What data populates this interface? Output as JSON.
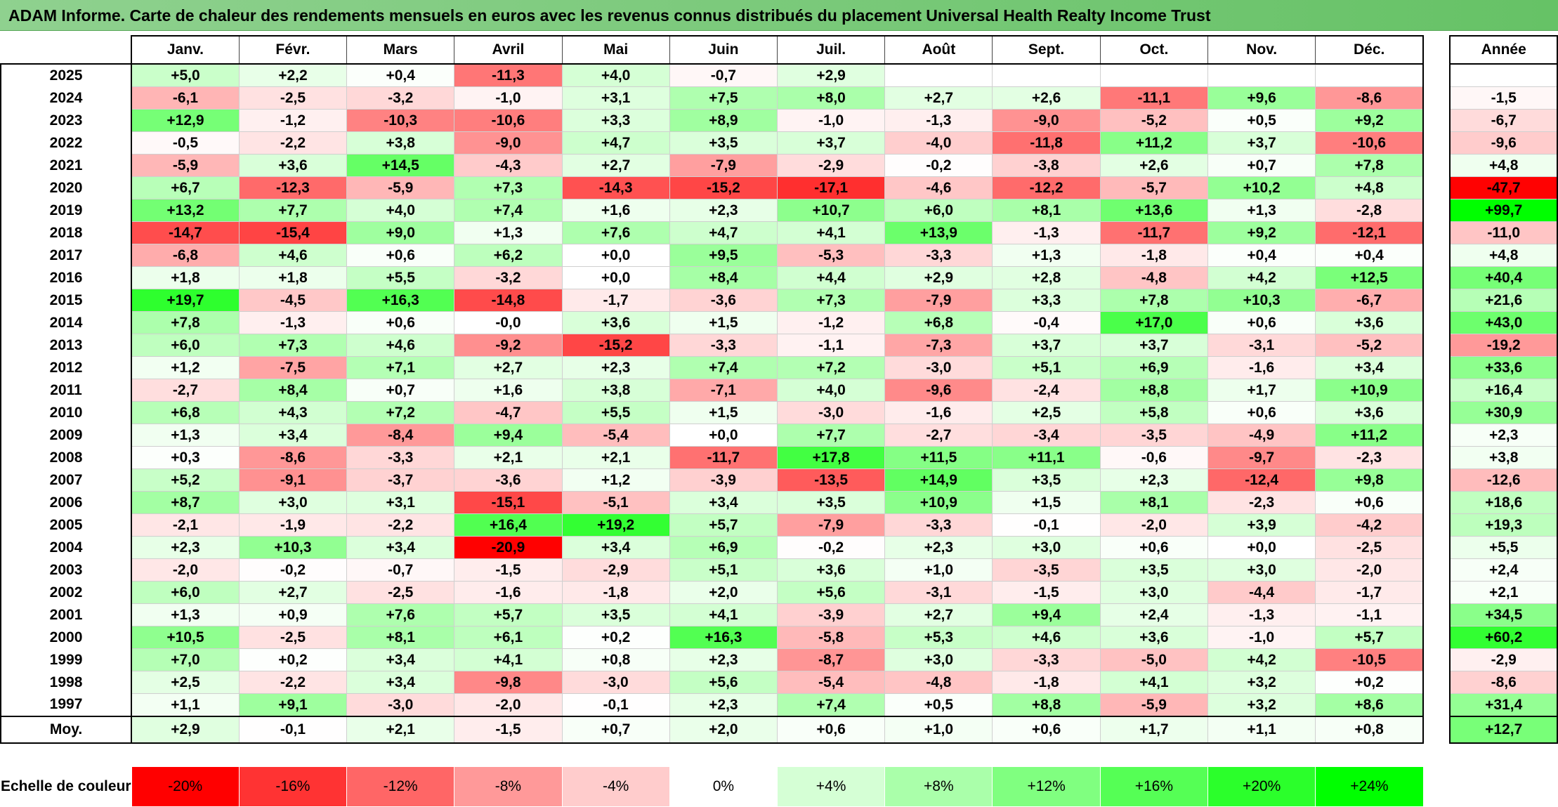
{
  "title": "ADAM Informe. Carte de chaleur des rendements mensuels en euros avec les revenus connus distribués du placement Universal Health Realty Income Trust",
  "chart_data": {
    "type": "heatmap",
    "title": "ADAM Informe. Carte de chaleur des rendements mensuels en euros avec les revenus connus distribués du placement Universal Health Realty Income Trust",
    "months": [
      "Janv.",
      "Févr.",
      "Mars",
      "Avril",
      "Mai",
      "Juin",
      "Juil.",
      "Août",
      "Sept.",
      "Oct.",
      "Nov.",
      "Déc."
    ],
    "year_header": "Année",
    "rows": [
      {
        "year": "2025",
        "values": [
          "+5,0",
          "+2,2",
          "+0,4",
          "-11,3",
          "+4,0",
          "-0,7",
          "+2,9",
          "",
          "",
          "",
          "",
          ""
        ],
        "annual": ""
      },
      {
        "year": "2024",
        "values": [
          "-6,1",
          "-2,5",
          "-3,2",
          "-1,0",
          "+3,1",
          "+7,5",
          "+8,0",
          "+2,7",
          "+2,6",
          "-11,1",
          "+9,6",
          "-8,6"
        ],
        "annual": "-1,5"
      },
      {
        "year": "2023",
        "values": [
          "+12,9",
          "-1,2",
          "-10,3",
          "-10,6",
          "+3,3",
          "+8,9",
          "-1,0",
          "-1,3",
          "-9,0",
          "-5,2",
          "+0,5",
          "+9,2"
        ],
        "annual": "-6,7"
      },
      {
        "year": "2022",
        "values": [
          "-0,5",
          "-2,2",
          "+3,8",
          "-9,0",
          "+4,7",
          "+3,5",
          "+3,7",
          "-4,0",
          "-11,8",
          "+11,2",
          "+3,7",
          "-10,6"
        ],
        "annual": "-9,6"
      },
      {
        "year": "2021",
        "values": [
          "-5,9",
          "+3,6",
          "+14,5",
          "-4,3",
          "+2,7",
          "-7,9",
          "-2,9",
          "-0,2",
          "-3,8",
          "+2,6",
          "+0,7",
          "+7,8"
        ],
        "annual": "+4,8"
      },
      {
        "year": "2020",
        "values": [
          "+6,7",
          "-12,3",
          "-5,9",
          "+7,3",
          "-14,3",
          "-15,2",
          "-17,1",
          "-4,6",
          "-12,2",
          "-5,7",
          "+10,2",
          "+4,8"
        ],
        "annual": "-47,7"
      },
      {
        "year": "2019",
        "values": [
          "+13,2",
          "+7,7",
          "+4,0",
          "+7,4",
          "+1,6",
          "+2,3",
          "+10,7",
          "+6,0",
          "+8,1",
          "+13,6",
          "+1,3",
          "-2,8"
        ],
        "annual": "+99,7"
      },
      {
        "year": "2018",
        "values": [
          "-14,7",
          "-15,4",
          "+9,0",
          "+1,3",
          "+7,6",
          "+4,7",
          "+4,1",
          "+13,9",
          "-1,3",
          "-11,7",
          "+9,2",
          "-12,1"
        ],
        "annual": "-11,0"
      },
      {
        "year": "2017",
        "values": [
          "-6,8",
          "+4,6",
          "+0,6",
          "+6,2",
          "+0,0",
          "+9,5",
          "-5,3",
          "-3,3",
          "+1,3",
          "-1,8",
          "+0,4",
          "+0,4"
        ],
        "annual": "+4,8"
      },
      {
        "year": "2016",
        "values": [
          "+1,8",
          "+1,8",
          "+5,5",
          "-3,2",
          "+0,0",
          "+8,4",
          "+4,4",
          "+2,9",
          "+2,8",
          "-4,8",
          "+4,2",
          "+12,5"
        ],
        "annual": "+40,4"
      },
      {
        "year": "2015",
        "values": [
          "+19,7",
          "-4,5",
          "+16,3",
          "-14,8",
          "-1,7",
          "-3,6",
          "+7,3",
          "-7,9",
          "+3,3",
          "+7,8",
          "+10,3",
          "-6,7"
        ],
        "annual": "+21,6"
      },
      {
        "year": "2014",
        "values": [
          "+7,8",
          "-1,3",
          "+0,6",
          "-0,0",
          "+3,6",
          "+1,5",
          "-1,2",
          "+6,8",
          "-0,4",
          "+17,0",
          "+0,6",
          "+3,6"
        ],
        "annual": "+43,0"
      },
      {
        "year": "2013",
        "values": [
          "+6,0",
          "+7,3",
          "+4,6",
          "-9,2",
          "-15,2",
          "-3,3",
          "-1,1",
          "-7,3",
          "+3,7",
          "+3,7",
          "-3,1",
          "-5,2"
        ],
        "annual": "-19,2"
      },
      {
        "year": "2012",
        "values": [
          "+1,2",
          "-7,5",
          "+7,1",
          "+2,7",
          "+2,3",
          "+7,4",
          "+7,2",
          "-3,0",
          "+5,1",
          "+6,9",
          "-1,6",
          "+3,4"
        ],
        "annual": "+33,6"
      },
      {
        "year": "2011",
        "values": [
          "-2,7",
          "+8,4",
          "+0,7",
          "+1,6",
          "+3,8",
          "-7,1",
          "+4,0",
          "-9,6",
          "-2,4",
          "+8,8",
          "+1,7",
          "+10,9"
        ],
        "annual": "+16,4"
      },
      {
        "year": "2010",
        "values": [
          "+6,8",
          "+4,3",
          "+7,2",
          "-4,7",
          "+5,5",
          "+1,5",
          "-3,0",
          "-1,6",
          "+2,5",
          "+5,8",
          "+0,6",
          "+3,6"
        ],
        "annual": "+30,9"
      },
      {
        "year": "2009",
        "values": [
          "+1,3",
          "+3,4",
          "-8,4",
          "+9,4",
          "-5,4",
          "+0,0",
          "+7,7",
          "-2,7",
          "-3,4",
          "-3,5",
          "-4,9",
          "+11,2"
        ],
        "annual": "+2,3"
      },
      {
        "year": "2008",
        "values": [
          "+0,3",
          "-8,6",
          "-3,3",
          "+2,1",
          "+2,1",
          "-11,7",
          "+17,8",
          "+11,5",
          "+11,1",
          "-0,6",
          "-9,7",
          "-2,3"
        ],
        "annual": "+3,8"
      },
      {
        "year": "2007",
        "values": [
          "+5,2",
          "-9,1",
          "-3,7",
          "-3,6",
          "+1,2",
          "-3,9",
          "-13,5",
          "+14,9",
          "+3,5",
          "+2,3",
          "-12,4",
          "+9,8"
        ],
        "annual": "-12,6"
      },
      {
        "year": "2006",
        "values": [
          "+8,7",
          "+3,0",
          "+3,1",
          "-15,1",
          "-5,1",
          "+3,4",
          "+3,5",
          "+10,9",
          "+1,5",
          "+8,1",
          "-2,3",
          "+0,6"
        ],
        "annual": "+18,6"
      },
      {
        "year": "2005",
        "values": [
          "-2,1",
          "-1,9",
          "-2,2",
          "+16,4",
          "+19,2",
          "+5,7",
          "-7,9",
          "-3,3",
          "-0,1",
          "-2,0",
          "+3,9",
          "-4,2"
        ],
        "annual": "+19,3"
      },
      {
        "year": "2004",
        "values": [
          "+2,3",
          "+10,3",
          "+3,4",
          "-20,9",
          "+3,4",
          "+6,9",
          "-0,2",
          "+2,3",
          "+3,0",
          "+0,6",
          "+0,0",
          "-2,5"
        ],
        "annual": "+5,5"
      },
      {
        "year": "2003",
        "values": [
          "-2,0",
          "-0,2",
          "-0,7",
          "-1,5",
          "-2,9",
          "+5,1",
          "+3,6",
          "+1,0",
          "-3,5",
          "+3,5",
          "+3,0",
          "-2,0"
        ],
        "annual": "+2,4"
      },
      {
        "year": "2002",
        "values": [
          "+6,0",
          "+2,7",
          "-2,5",
          "-1,6",
          "-1,8",
          "+2,0",
          "+5,6",
          "-3,1",
          "-1,5",
          "+3,0",
          "-4,4",
          "-1,7"
        ],
        "annual": "+2,1"
      },
      {
        "year": "2001",
        "values": [
          "+1,3",
          "+0,9",
          "+7,6",
          "+5,7",
          "+3,5",
          "+4,1",
          "-3,9",
          "+2,7",
          "+9,4",
          "+2,4",
          "-1,3",
          "-1,1"
        ],
        "annual": "+34,5"
      },
      {
        "year": "2000",
        "values": [
          "+10,5",
          "-2,5",
          "+8,1",
          "+6,1",
          "+0,2",
          "+16,3",
          "-5,8",
          "+5,3",
          "+4,6",
          "+3,6",
          "-1,0",
          "+5,7"
        ],
        "annual": "+60,2"
      },
      {
        "year": "1999",
        "values": [
          "+7,0",
          "+0,2",
          "+3,4",
          "+4,1",
          "+0,8",
          "+2,3",
          "-8,7",
          "+3,0",
          "-3,3",
          "-5,0",
          "+4,2",
          "-10,5"
        ],
        "annual": "-2,9"
      },
      {
        "year": "1998",
        "values": [
          "+2,5",
          "-2,2",
          "+3,4",
          "-9,8",
          "-3,0",
          "+5,6",
          "-5,4",
          "-4,8",
          "-1,8",
          "+4,1",
          "+3,2",
          "+0,2"
        ],
        "annual": "-8,6"
      },
      {
        "year": "1997",
        "values": [
          "+1,1",
          "+9,1",
          "-3,0",
          "-2,0",
          "-0,1",
          "+2,3",
          "+7,4",
          "+0,5",
          "+8,8",
          "-5,9",
          "+3,2",
          "+8,6"
        ],
        "annual": "+31,4"
      }
    ],
    "average": {
      "label": "Moy.",
      "values": [
        "+2,9",
        "-0,1",
        "+2,1",
        "-1,5",
        "+0,7",
        "+2,0",
        "+0,6",
        "+1,0",
        "+0,6",
        "+1,7",
        "+1,1",
        "+0,8"
      ],
      "annual": "+12,7"
    },
    "legend": {
      "label": "Echelle de couleur",
      "steps": [
        "-20%",
        "-16%",
        "-12%",
        "-8%",
        "-4%",
        "0%",
        "+4%",
        "+8%",
        "+12%",
        "+16%",
        "+20%",
        "+24%"
      ]
    }
  }
}
